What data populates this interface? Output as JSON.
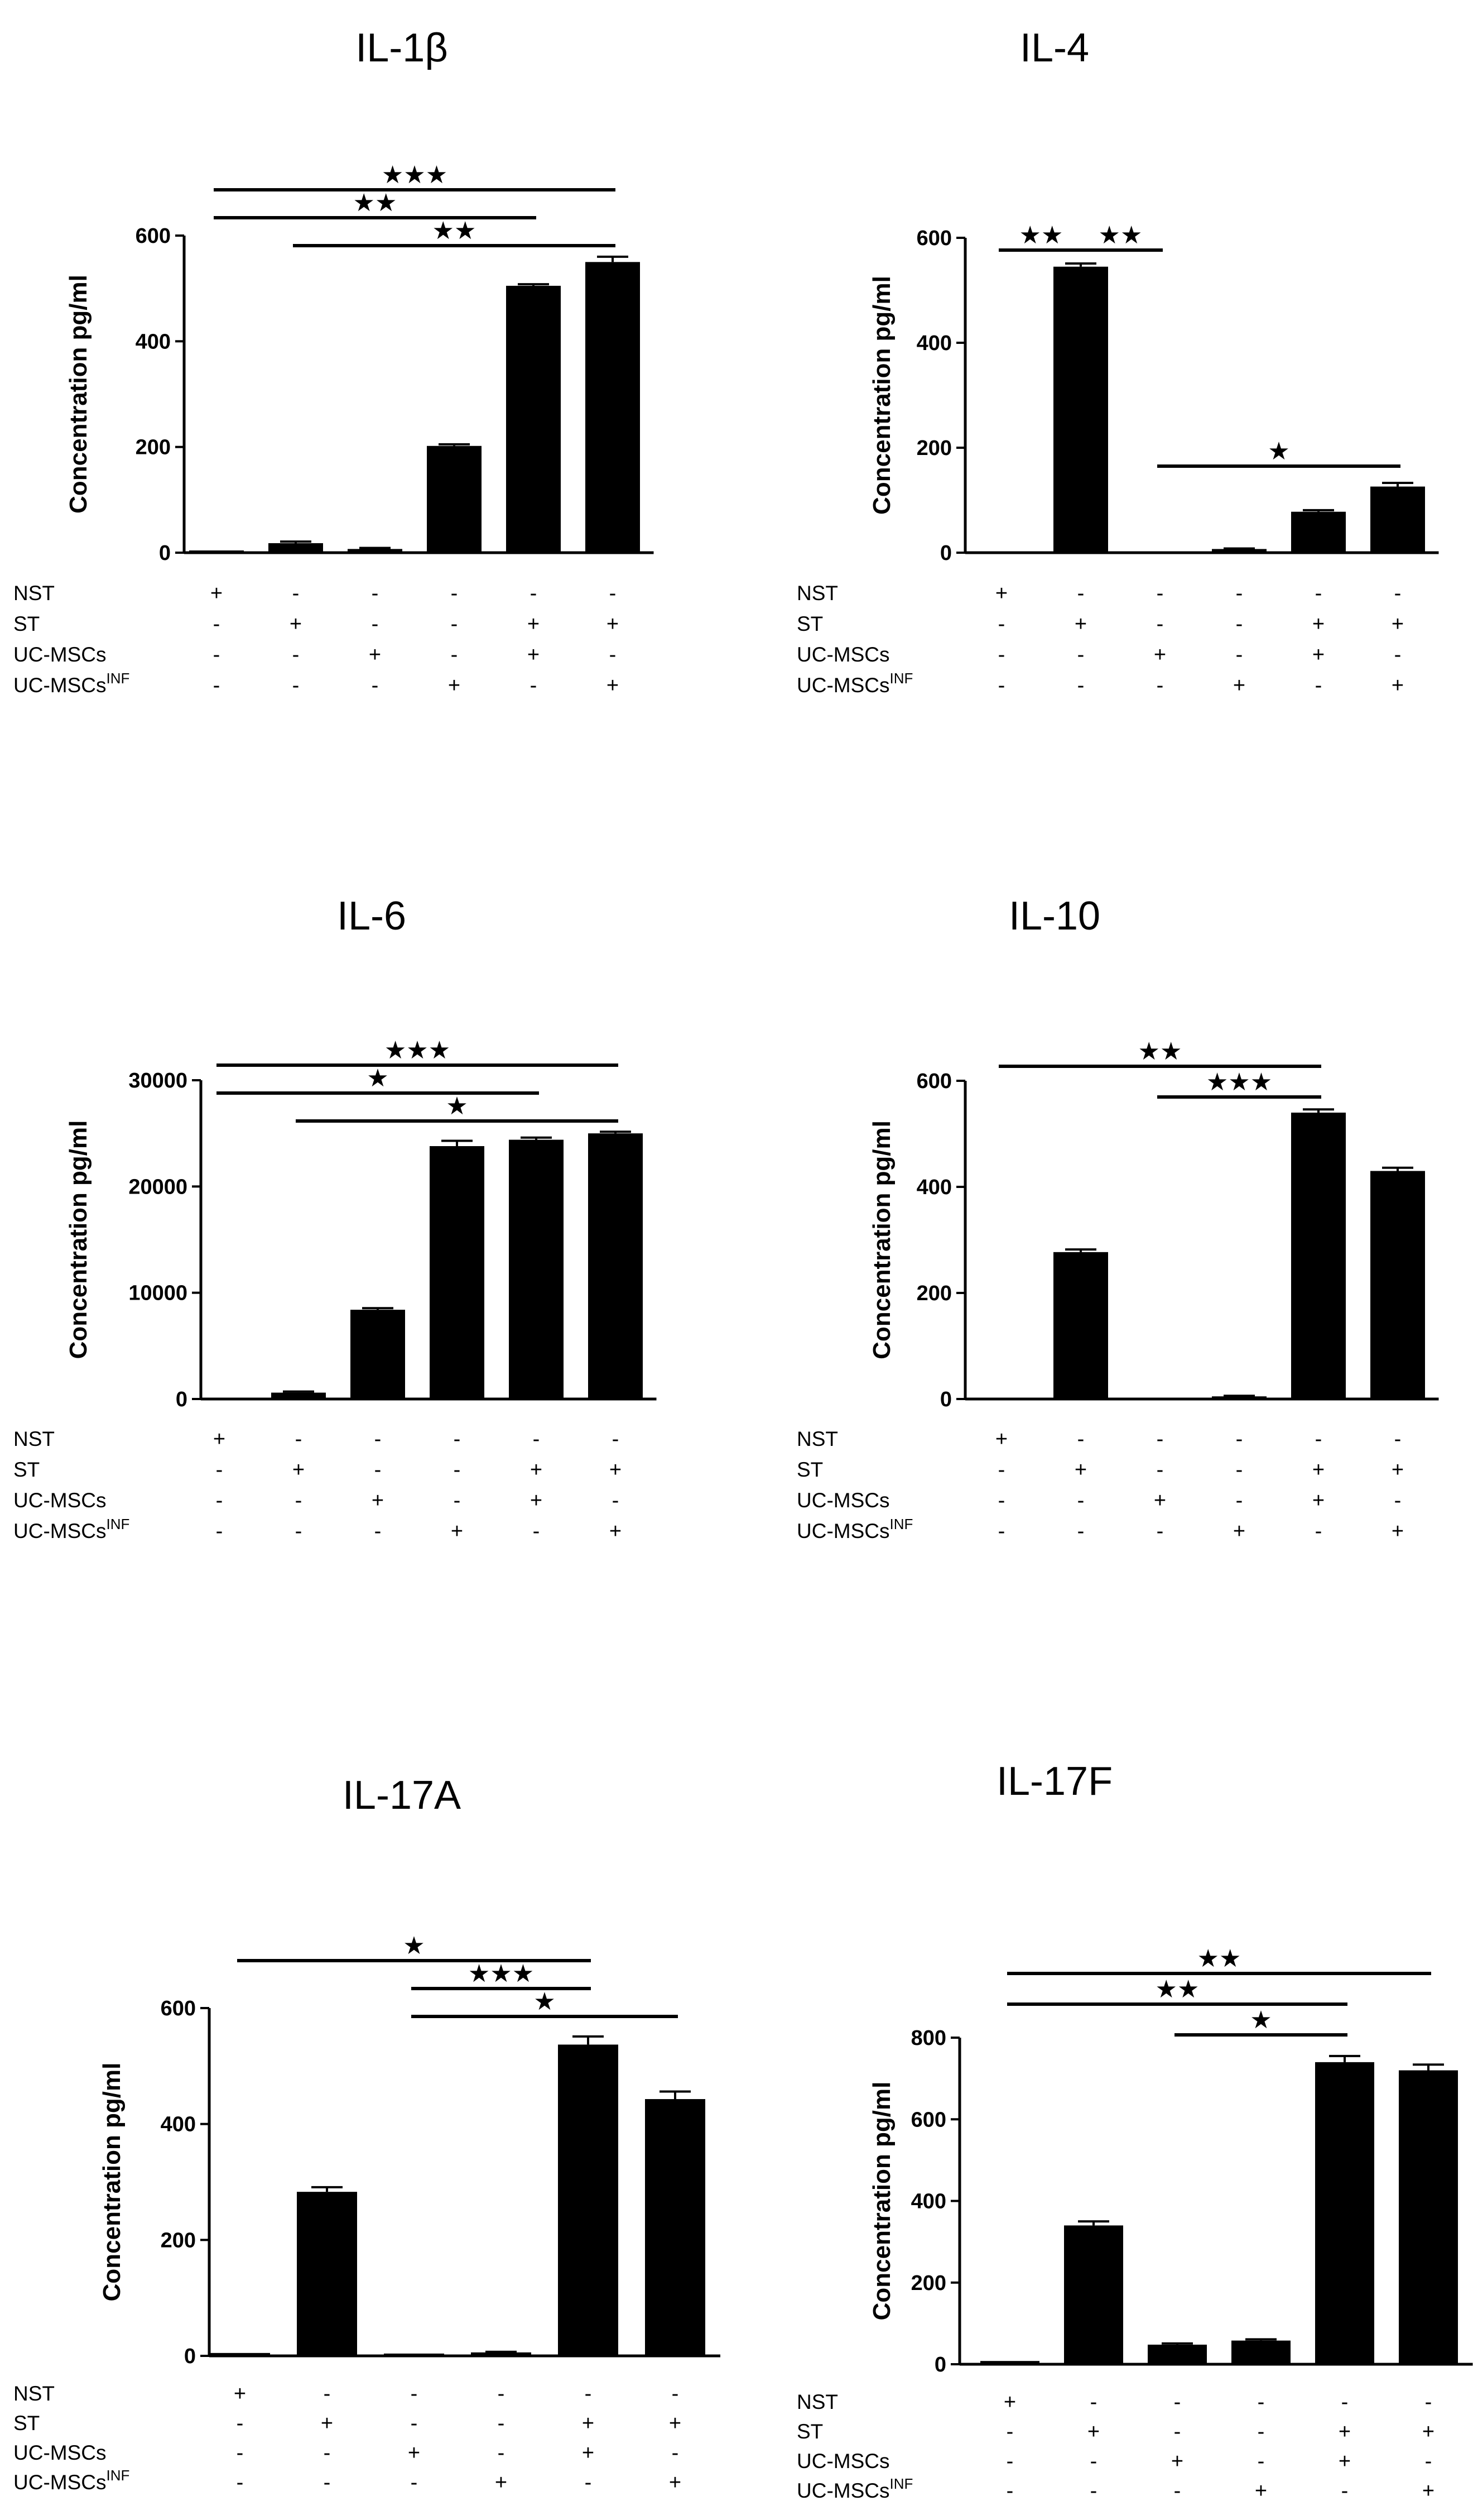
{
  "row_labels": [
    {
      "key": "NST",
      "text": "NST"
    },
    {
      "key": "ST",
      "text": "ST"
    },
    {
      "key": "UC-MSCs",
      "text": "UC-MSCs"
    },
    {
      "key": "UC-MSCs-INF",
      "text": "UC-MSCs",
      "sup": "INF"
    }
  ],
  "conditions": [
    [
      "+",
      "-",
      "-",
      "-"
    ],
    [
      "-",
      "+",
      "-",
      "-"
    ],
    [
      "-",
      "-",
      "+",
      "-"
    ],
    [
      "-",
      "-",
      "-",
      "+"
    ],
    [
      "-",
      "+",
      "+",
      "-"
    ],
    [
      "-",
      "+",
      "-",
      "+"
    ]
  ],
  "chart_data": [
    {
      "type": "bar",
      "title": "IL-1β",
      "ylabel": "Concentration pg/ml",
      "ylim": [
        0,
        600
      ],
      "yticks": [
        "0",
        "200",
        "400",
        "600"
      ],
      "values": [
        2,
        18,
        7,
        202,
        505,
        550
      ],
      "errors": [
        0,
        3,
        2,
        3,
        3,
        10
      ],
      "significance": [
        {
          "from": 0,
          "to": 5,
          "stars": "★★★"
        },
        {
          "from": 0,
          "to": 4,
          "stars": "★★"
        },
        {
          "from": 1,
          "to": 5,
          "stars": "★★"
        }
      ]
    },
    {
      "type": "bar",
      "title": "IL-4",
      "ylabel": "Concentration pg/ml",
      "ylim": [
        0,
        600
      ],
      "yticks": [
        "0",
        "200",
        "400",
        "600"
      ],
      "values": [
        0,
        545,
        0,
        7,
        78,
        126
      ],
      "errors": [
        0,
        6,
        0,
        1,
        3,
        7
      ],
      "significance": [
        {
          "from": 0,
          "to": 1,
          "stars": "★★"
        },
        {
          "from": 1,
          "to": 2,
          "stars": "★★"
        },
        {
          "from": 2,
          "to": 5,
          "stars": "★"
        }
      ]
    },
    {
      "type": "bar",
      "title": "IL-6",
      "ylabel": "Concentration pg/ml",
      "ylim": [
        0,
        30000
      ],
      "yticks": [
        "0",
        "10000",
        "20000",
        "30000"
      ],
      "values": [
        0,
        600,
        8400,
        23800,
        24400,
        25000
      ],
      "errors": [
        0,
        100,
        150,
        500,
        200,
        150
      ],
      "significance": [
        {
          "from": 0,
          "to": 5,
          "stars": "★★★"
        },
        {
          "from": 0,
          "to": 4,
          "stars": "★"
        },
        {
          "from": 1,
          "to": 5,
          "stars": "★"
        }
      ]
    },
    {
      "type": "bar",
      "title": "IL-10",
      "ylabel": "Concentration pg/ml",
      "ylim": [
        0,
        600
      ],
      "yticks": [
        "0",
        "200",
        "400",
        "600"
      ],
      "values": [
        0,
        277,
        0,
        5,
        540,
        430
      ],
      "errors": [
        0,
        5,
        0,
        1,
        6,
        6
      ],
      "significance": [
        {
          "from": 0,
          "to": 4,
          "stars": "★★"
        },
        {
          "from": 2,
          "to": 4,
          "stars": "★★★"
        }
      ]
    },
    {
      "type": "bar",
      "title": "IL-17A",
      "ylabel": "Concentration pg/ml",
      "ylim": [
        0,
        600
      ],
      "yticks": [
        "0",
        "200",
        "400",
        "600"
      ],
      "values": [
        5,
        283,
        4,
        6,
        537,
        443
      ],
      "errors": [
        0,
        8,
        0,
        1,
        14,
        13
      ],
      "significance": [
        {
          "from": 0,
          "to": 4,
          "stars": "★"
        },
        {
          "from": 2,
          "to": 4,
          "stars": "★★★"
        },
        {
          "from": 2,
          "to": 5,
          "stars": "★"
        }
      ]
    },
    {
      "type": "bar",
      "title": "IL-17F",
      "ylabel": "Concentration pg/ml",
      "ylim": [
        0,
        800
      ],
      "yticks": [
        "0",
        "200",
        "400",
        "600",
        "800"
      ],
      "values": [
        8,
        340,
        48,
        58,
        740,
        720
      ],
      "errors": [
        0,
        10,
        3,
        3,
        15,
        14
      ],
      "significance": [
        {
          "from": 0,
          "to": 5,
          "stars": "★★"
        },
        {
          "from": 0,
          "to": 4,
          "stars": "★★"
        },
        {
          "from": 2,
          "to": 4,
          "stars": "★"
        }
      ]
    }
  ]
}
